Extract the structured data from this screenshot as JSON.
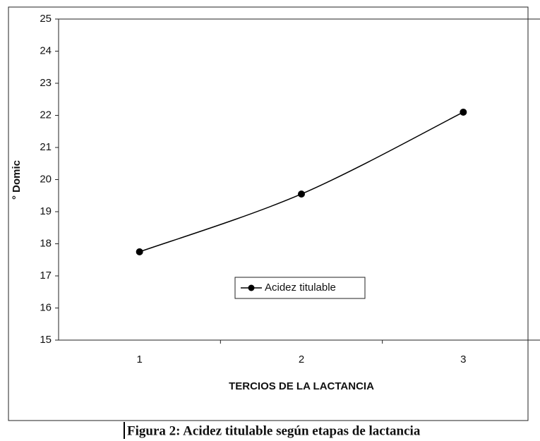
{
  "chart_data": {
    "type": "line",
    "xlabel": "TERCIOS DE LA LACTANCIA",
    "ylabel": "° Domic",
    "caption": "Figura 2: Acidez titulable según etapas de lactancia",
    "categories": [
      "1",
      "2",
      "3"
    ],
    "series": [
      {
        "name": "Acidez titulable",
        "color": "#000000",
        "values": [
          17.75,
          19.55,
          22.1
        ]
      }
    ],
    "ylim": [
      15,
      25
    ],
    "yticks": [
      15,
      16,
      17,
      18,
      19,
      20,
      21,
      22,
      23,
      24,
      25
    ],
    "legend": "center",
    "grid": false
  }
}
